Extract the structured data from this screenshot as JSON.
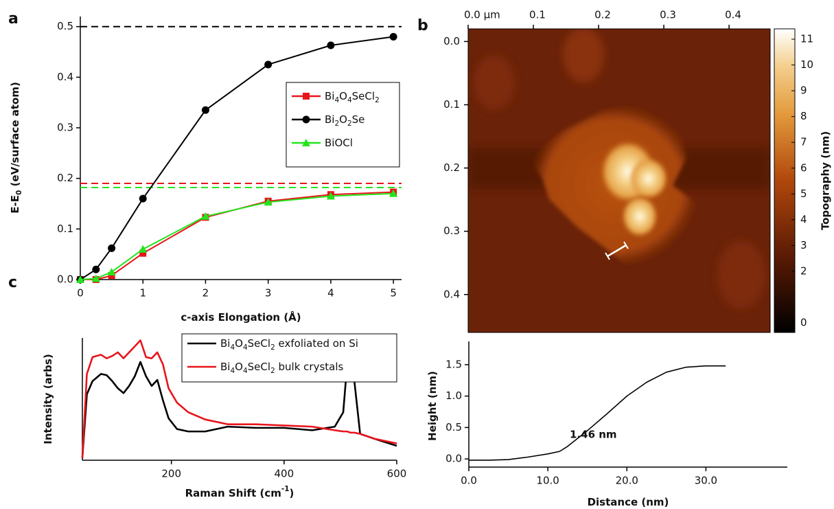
{
  "chart_data": [
    {
      "type": "line",
      "panel": "a",
      "xlabel": "c-axis Elongation (Å)",
      "ylabel": "E-E0 (eV/surface atom)",
      "xlim": [
        0,
        5.13
      ],
      "ylim": [
        0,
        0.52
      ],
      "xticks": [
        0,
        1,
        2,
        3,
        4,
        5
      ],
      "yticks": [
        {
          "value": 0,
          "label": "0.0"
        },
        0.1,
        0.2,
        0.3,
        0.4,
        0.5
      ],
      "x": [
        0,
        0.25,
        0.5,
        1,
        2,
        3,
        4,
        5
      ],
      "series": [
        {
          "name": "Bi4O4SeCl2",
          "color": "#e8141b",
          "marker": "square",
          "values": [
            0,
            0,
            0.008,
            0.052,
            0.123,
            0.155,
            0.168,
            0.173
          ]
        },
        {
          "name": "Bi2O2Se",
          "color": "#000000",
          "marker": "circle",
          "values": [
            0,
            0.02,
            0.062,
            0.16,
            0.335,
            0.425,
            0.463,
            0.48
          ]
        },
        {
          "name": "BiOCl",
          "color": "#22e51c",
          "marker": "triangle",
          "values": [
            0,
            0.002,
            0.015,
            0.06,
            0.125,
            0.153,
            0.165,
            0.17
          ]
        }
      ],
      "reference_lines": [
        {
          "value": 0.5,
          "color": "#000000"
        },
        {
          "value": 0.19,
          "color": "#e8141b"
        },
        {
          "value": 0.182,
          "color": "#22e51c"
        }
      ],
      "legend": true
    },
    {
      "type": "image",
      "panel": "b",
      "xlim": [
        0,
        0.463
      ],
      "ylim": [
        -0.02,
        0.46
      ],
      "xticks": [
        {
          "value": 0,
          "label": "0.0 µm"
        },
        0.1,
        0.2,
        0.3,
        0.4
      ],
      "yticks": [
        {
          "value": 0,
          "label": "0.0"
        },
        0.1,
        0.2,
        0.3,
        0.4
      ],
      "colorbar": {
        "label": "Topography (nm)",
        "lim": [
          -0.37,
          11.4
        ],
        "ticks": [
          0,
          2,
          3,
          4,
          5,
          6,
          7,
          8,
          9,
          10,
          11
        ]
      }
    },
    {
      "type": "line",
      "panel": "c",
      "xlabel": "Raman Shift (cm-1)",
      "ylabel": "Intensity (arbs)",
      "xlim": [
        42,
        600
      ],
      "ylim": [
        0,
        1.02
      ],
      "xticks": [
        200,
        400,
        600
      ],
      "x": [
        42,
        50,
        60,
        75,
        85,
        95,
        105,
        115,
        125,
        135,
        145,
        155,
        165,
        175,
        185,
        195,
        210,
        230,
        260,
        300,
        350,
        400,
        450,
        490,
        505,
        512,
        518,
        525,
        535,
        560,
        600
      ],
      "series": [
        {
          "name": "Bi4O4SeCl2 exfoliated on Si",
          "color": "#000000",
          "marker": "none",
          "values": [
            0.02,
            0.55,
            0.66,
            0.72,
            0.71,
            0.66,
            0.6,
            0.56,
            0.62,
            0.7,
            0.82,
            0.7,
            0.62,
            0.67,
            0.5,
            0.35,
            0.26,
            0.24,
            0.24,
            0.28,
            0.27,
            0.27,
            0.25,
            0.28,
            0.4,
            0.8,
            0.95,
            0.65,
            0.22,
            0.18,
            0.12
          ]
        },
        {
          "name": "Bi4O4SeCl2 bulk crystals",
          "color": "#e8141b",
          "marker": "none",
          "values": [
            0.02,
            0.72,
            0.86,
            0.88,
            0.85,
            0.87,
            0.9,
            0.85,
            0.9,
            0.95,
            1.0,
            0.86,
            0.85,
            0.9,
            0.8,
            0.6,
            0.48,
            0.4,
            0.34,
            0.3,
            0.3,
            0.29,
            0.28,
            0.25,
            0.24,
            0.24,
            0.23,
            0.23,
            0.22,
            0.18,
            0.14
          ]
        }
      ],
      "legend": true
    },
    {
      "type": "line",
      "xlabel": "Distance (nm)",
      "ylabel": "Height (nm)",
      "annotation": "1.46 nm",
      "xlim": [
        0,
        40.3
      ],
      "ylim": [
        -0.13,
        1.87
      ],
      "xticks": [
        {
          "value": 0,
          "label": "0.0"
        },
        {
          "value": 10,
          "label": "10.0"
        },
        {
          "value": 20,
          "label": "20.0"
        },
        {
          "value": 30,
          "label": "30.0"
        }
      ],
      "yticks": [
        {
          "value": 0,
          "label": "0.0"
        },
        0.5,
        {
          "value": 1,
          "label": "1.0"
        },
        1.5
      ],
      "x": [
        0,
        2.5,
        5,
        7.5,
        10,
        11.5,
        12.5,
        15,
        17.5,
        20,
        22.5,
        25,
        27.5,
        30,
        32.5
      ],
      "series": [
        {
          "color": "#000000",
          "marker": "none",
          "values": [
            -0.02,
            -0.02,
            -0.01,
            0.03,
            0.08,
            0.12,
            0.2,
            0.45,
            0.72,
            1.0,
            1.22,
            1.38,
            1.46,
            1.48,
            1.48
          ]
        }
      ]
    }
  ]
}
